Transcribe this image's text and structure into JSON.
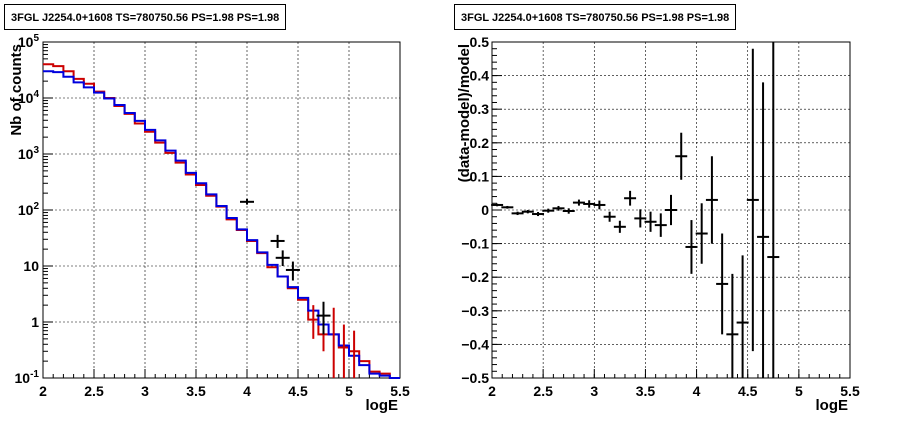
{
  "panels": [
    {
      "title": "3FGL J2254.0+1608 TS=780750.56 PS=1.98 PS=1.98"
    },
    {
      "title": "3FGL J2254.0+1608 TS=780750.56 PS=1.98 PS=1.98"
    }
  ],
  "colors": {
    "data": "#000000",
    "model_red": "#cc0000",
    "model_blue": "#0000dd",
    "grid": "#000000"
  },
  "chart_data": [
    {
      "type": "line",
      "title": "3FGL J2254.0+1608 TS=780750.56 PS=1.98 PS=1.98",
      "xlabel": "logE",
      "ylabel": "Nb of counts",
      "yscale": "log",
      "xlim": [
        2,
        5.5
      ],
      "ylim": [
        0.1,
        100000
      ],
      "xticks": [
        "2",
        "2.5",
        "3",
        "3.5",
        "4",
        "4.5",
        "5",
        "5.5"
      ],
      "yticks": [
        "10^-1",
        "1",
        "10",
        "10^2",
        "10^3",
        "10^4",
        "10^5"
      ],
      "grid": true,
      "bin_edges": [
        2.0,
        2.1,
        2.2,
        2.3,
        2.4,
        2.5,
        2.6,
        2.7,
        2.8,
        2.9,
        3.0,
        3.1,
        3.2,
        3.3,
        3.4,
        3.5,
        3.6,
        3.7,
        3.8,
        3.9,
        4.0,
        4.1,
        4.2,
        4.3,
        4.4,
        4.5,
        4.6,
        4.7,
        4.8,
        4.9,
        5.0,
        5.1,
        5.2,
        5.3,
        5.4,
        5.5
      ],
      "series": [
        {
          "values": [
            40000,
            37000,
            30000,
            22000,
            18000,
            13000,
            10000,
            7200,
            5200,
            3500,
            2500,
            1600,
            1050,
            700,
            430,
            280,
            180,
            115,
            68,
            44,
            28,
            17,
            9.5,
            6.5,
            4.0,
            2.5,
            1.1,
            0.6,
            0.6,
            0.35,
            0.3,
            0.2,
            0.13,
            0.12,
            0.1
          ]
        },
        {
          "values": [
            30000,
            29000,
            24000,
            19000,
            15500,
            12500,
            9800,
            7500,
            5400,
            3900,
            2700,
            1750,
            1150,
            760,
            460,
            300,
            190,
            118,
            72,
            45,
            29,
            17.5,
            10.5,
            6.5,
            4.2,
            2.7,
            1.6,
            0.9,
            0.6,
            0.38,
            0.25,
            0.17,
            0.12,
            0.11,
            0.1
          ]
        }
      ],
      "points": [
        {
          "x": 4.0,
          "y": 140,
          "ylo": 125,
          "yhi": 158
        },
        {
          "x": 4.3,
          "y": 28,
          "ylo": 21,
          "yhi": 36
        },
        {
          "x": 4.35,
          "y": 14,
          "ylo": 10,
          "yhi": 19
        },
        {
          "x": 4.45,
          "y": 8.5,
          "ylo": 5.5,
          "yhi": 12
        },
        {
          "x": 4.75,
          "y": 1.3,
          "ylo": 0.6,
          "yhi": 2.3
        }
      ]
    },
    {
      "type": "scatter",
      "title": "3FGL J2254.0+1608 TS=780750.56 PS=1.98 PS=1.98",
      "xlabel": "logE",
      "ylabel": "(data-model)/model",
      "xlim": [
        2,
        5.5
      ],
      "ylim": [
        -0.5,
        0.5
      ],
      "xticks": [
        "2",
        "2.5",
        "3",
        "3.5",
        "4",
        "4.5",
        "5",
        "5.5"
      ],
      "yticks": [
        "−0.5",
        "−0.4",
        "−0.3",
        "−0.2",
        "−0.1",
        "0",
        "0.1",
        "0.2",
        "0.3",
        "0.4",
        "0.5"
      ],
      "grid": true,
      "points": [
        {
          "x": 2.05,
          "y": 0.015,
          "err": 0.004
        },
        {
          "x": 2.15,
          "y": 0.008,
          "err": 0.004
        },
        {
          "x": 2.25,
          "y": -0.01,
          "err": 0.005
        },
        {
          "x": 2.35,
          "y": -0.005,
          "err": 0.005
        },
        {
          "x": 2.45,
          "y": -0.012,
          "err": 0.006
        },
        {
          "x": 2.55,
          "y": -0.002,
          "err": 0.006
        },
        {
          "x": 2.65,
          "y": 0.005,
          "err": 0.007
        },
        {
          "x": 2.75,
          "y": -0.003,
          "err": 0.008
        },
        {
          "x": 2.85,
          "y": 0.022,
          "err": 0.009
        },
        {
          "x": 2.95,
          "y": 0.018,
          "err": 0.011
        },
        {
          "x": 3.05,
          "y": 0.015,
          "err": 0.013
        },
        {
          "x": 3.15,
          "y": -0.02,
          "err": 0.015
        },
        {
          "x": 3.25,
          "y": -0.05,
          "err": 0.018
        },
        {
          "x": 3.35,
          "y": 0.035,
          "err": 0.022
        },
        {
          "x": 3.45,
          "y": -0.025,
          "err": 0.027
        },
        {
          "x": 3.55,
          "y": -0.035,
          "err": 0.03
        },
        {
          "x": 3.65,
          "y": -0.045,
          "err": 0.035
        },
        {
          "x": 3.75,
          "y": 0.0,
          "err": 0.045
        },
        {
          "x": 3.85,
          "y": 0.16,
          "err": 0.07
        },
        {
          "x": 3.95,
          "y": -0.11,
          "err": 0.08
        },
        {
          "x": 4.05,
          "y": -0.07,
          "err": 0.09
        },
        {
          "x": 4.15,
          "y": 0.03,
          "err": 0.13
        },
        {
          "x": 4.25,
          "y": -0.22,
          "err": 0.15
        },
        {
          "x": 4.35,
          "y": -0.37,
          "err": 0.18
        },
        {
          "x": 4.45,
          "y": -0.335,
          "err": 0.2
        },
        {
          "x": 4.55,
          "y": 0.03,
          "err": 0.45
        },
        {
          "x": 4.65,
          "y": -0.08,
          "err": 0.46
        },
        {
          "x": 4.75,
          "y": -0.14,
          "err": 0.65
        }
      ]
    }
  ]
}
